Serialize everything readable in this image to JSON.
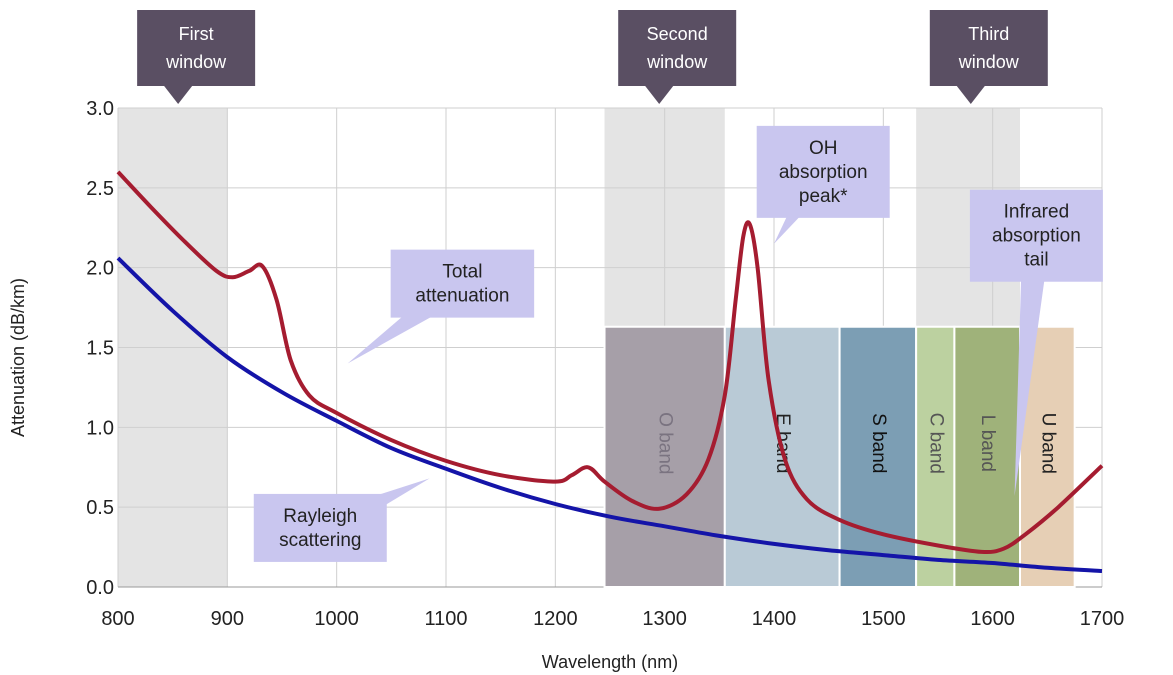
{
  "chart_data": {
    "type": "line",
    "xlabel": "Wavelength (nm)",
    "ylabel": "Attenuation (dB/km)",
    "xlim": [
      800,
      1700
    ],
    "ylim": [
      0,
      3.0
    ],
    "x_ticks": [
      "800",
      "900",
      "1000",
      "1100",
      "1200",
      "1300",
      "1400",
      "1500",
      "1600",
      "1700"
    ],
    "y_ticks": [
      "0.0",
      "0.5",
      "1.0",
      "1.5",
      "2.0",
      "2.5",
      "3.0"
    ],
    "grid": true,
    "windows": [
      {
        "label_lines": [
          "First",
          "window"
        ],
        "x_start": 800,
        "x_end": 900,
        "pointer_x": 855
      },
      {
        "label_lines": [
          "Second",
          "window"
        ],
        "x_start": 1245,
        "x_end": 1355,
        "pointer_x": 1295
      },
      {
        "label_lines": [
          "Third",
          "window"
        ],
        "x_start": 1530,
        "x_end": 1625,
        "pointer_x": 1580
      }
    ],
    "bands": [
      {
        "name": "O band",
        "x_start": 1245,
        "x_end": 1355,
        "height": 1.63,
        "color": "#a69fa8",
        "text_color": "#7a7380"
      },
      {
        "name": "E band",
        "x_start": 1355,
        "x_end": 1460,
        "height": 1.63,
        "color": "#b9cad6",
        "text_color": "#222222"
      },
      {
        "name": "S band",
        "x_start": 1460,
        "x_end": 1530,
        "height": 1.63,
        "color": "#7c9eb4",
        "text_color": "#111111"
      },
      {
        "name": "C band",
        "x_start": 1530,
        "x_end": 1565,
        "height": 1.63,
        "color": "#bcd1a0",
        "text_color": "#555555"
      },
      {
        "name": "L band",
        "x_start": 1565,
        "x_end": 1625,
        "height": 1.63,
        "color": "#9fb27a",
        "text_color": "#555555"
      },
      {
        "name": "U band",
        "x_start": 1625,
        "x_end": 1675,
        "height": 1.63,
        "color": "#e6cfb5",
        "text_color": "#222222"
      }
    ],
    "series": [
      {
        "color": "#a51c30",
        "x": [
          800,
          830,
          860,
          890,
          905,
          920,
          932,
          945,
          958,
          975,
          1000,
          1050,
          1100,
          1150,
          1200,
          1215,
          1230,
          1245,
          1270,
          1295,
          1320,
          1340,
          1355,
          1365,
          1372,
          1378,
          1385,
          1395,
          1410,
          1430,
          1460,
          1500,
          1550,
          1590,
          1610,
          1630,
          1660,
          1700
        ],
        "y": [
          2.6,
          2.38,
          2.17,
          1.98,
          1.94,
          1.98,
          2.01,
          1.8,
          1.42,
          1.2,
          1.09,
          0.92,
          0.79,
          0.7,
          0.66,
          0.7,
          0.75,
          0.66,
          0.54,
          0.49,
          0.58,
          0.8,
          1.2,
          1.8,
          2.2,
          2.27,
          2.0,
          1.3,
          0.8,
          0.55,
          0.42,
          0.33,
          0.26,
          0.22,
          0.24,
          0.33,
          0.5,
          0.76
        ]
      },
      {
        "color": "#1414a8",
        "x": [
          800,
          850,
          900,
          950,
          1000,
          1050,
          1100,
          1150,
          1200,
          1250,
          1300,
          1350,
          1400,
          1450,
          1500,
          1550,
          1600,
          1650,
          1700
        ],
        "y": [
          2.06,
          1.73,
          1.44,
          1.22,
          1.04,
          0.87,
          0.74,
          0.62,
          0.52,
          0.44,
          0.38,
          0.32,
          0.27,
          0.23,
          0.2,
          0.17,
          0.15,
          0.12,
          0.1
        ]
      }
    ],
    "callouts": [
      {
        "lines": [
          "Total",
          "attenuation"
        ],
        "x": 1115,
        "y": 1.9,
        "pointer": [
          1010,
          1.4
        ]
      },
      {
        "lines": [
          "Rayleigh",
          "scattering"
        ],
        "x": 985,
        "y": 0.37,
        "pointer": [
          1085,
          0.68
        ]
      },
      {
        "lines": [
          "OH",
          "absorption",
          "peak*"
        ],
        "x": 1445,
        "y": 2.6,
        "pointer": [
          1400,
          2.15
        ]
      },
      {
        "lines": [
          "Infrared",
          "absorption",
          "tail"
        ],
        "x": 1640,
        "y": 2.2,
        "pointer": [
          1620,
          0.57
        ]
      }
    ]
  }
}
